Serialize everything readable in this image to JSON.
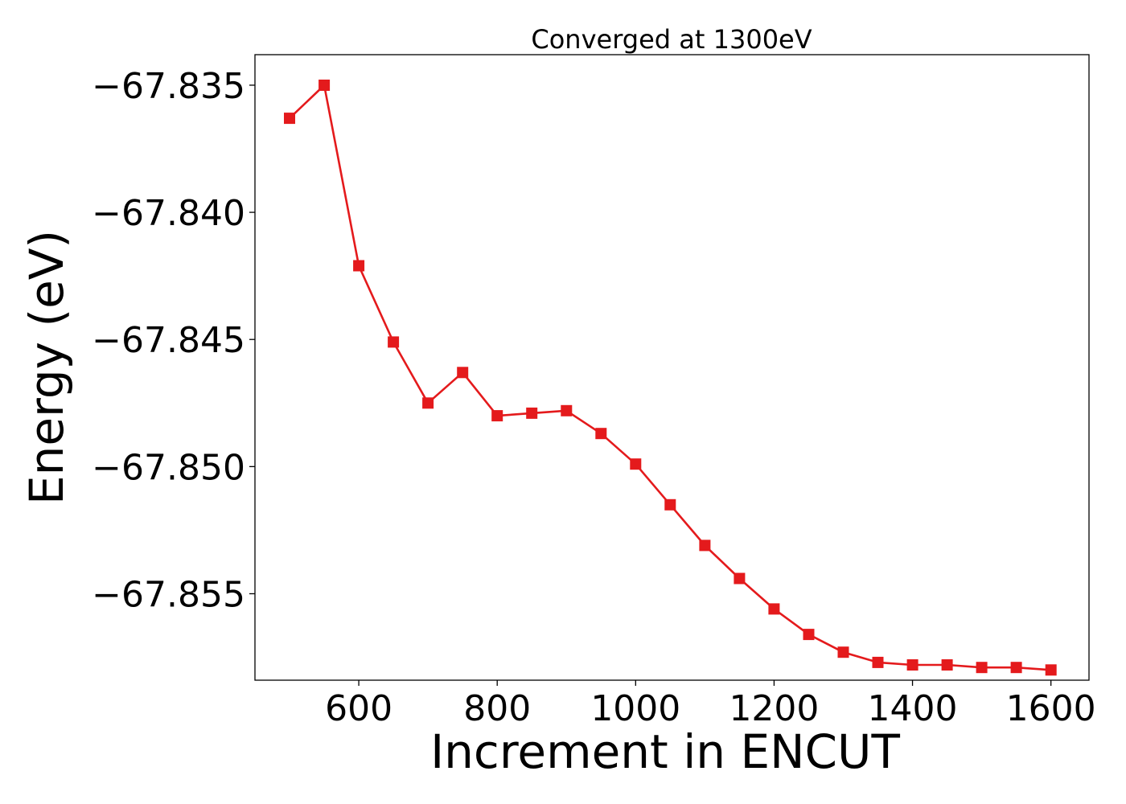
{
  "chart_data": {
    "type": "line",
    "title": "Converged at 1300eV",
    "xlabel": "Increment in ENCUT",
    "ylabel": "Energy (eV)",
    "xlim": [
      450,
      1655
    ],
    "ylim": [
      -67.8584,
      -67.8338
    ],
    "xticks": [
      600,
      800,
      1000,
      1200,
      1400,
      1600
    ],
    "xtick_labels": [
      "600",
      "800",
      "1000",
      "1200",
      "1400",
      "1600"
    ],
    "yticks": [
      -67.835,
      -67.84,
      -67.845,
      -67.85,
      -67.855
    ],
    "ytick_labels": [
      "−67.835",
      "−67.840",
      "−67.845",
      "−67.850",
      "−67.855"
    ],
    "grid": false,
    "marker": "square",
    "color": "#e41a1c",
    "series": [
      {
        "x": [
          500,
          550,
          600,
          650,
          700,
          750,
          800,
          850,
          900,
          950,
          1000,
          1050,
          1100,
          1150,
          1200,
          1250,
          1300,
          1350,
          1400,
          1450,
          1500,
          1550,
          1600
        ],
        "y": [
          -67.8363,
          -67.835,
          -67.8421,
          -67.8451,
          -67.8475,
          -67.8463,
          -67.848,
          -67.8479,
          -67.8478,
          -67.8487,
          -67.8499,
          -67.8515,
          -67.8531,
          -67.8544,
          -67.8556,
          -67.8566,
          -67.8573,
          -67.8577,
          -67.8578,
          -67.8578,
          -67.8579,
          -67.8579,
          -67.858
        ]
      }
    ]
  }
}
